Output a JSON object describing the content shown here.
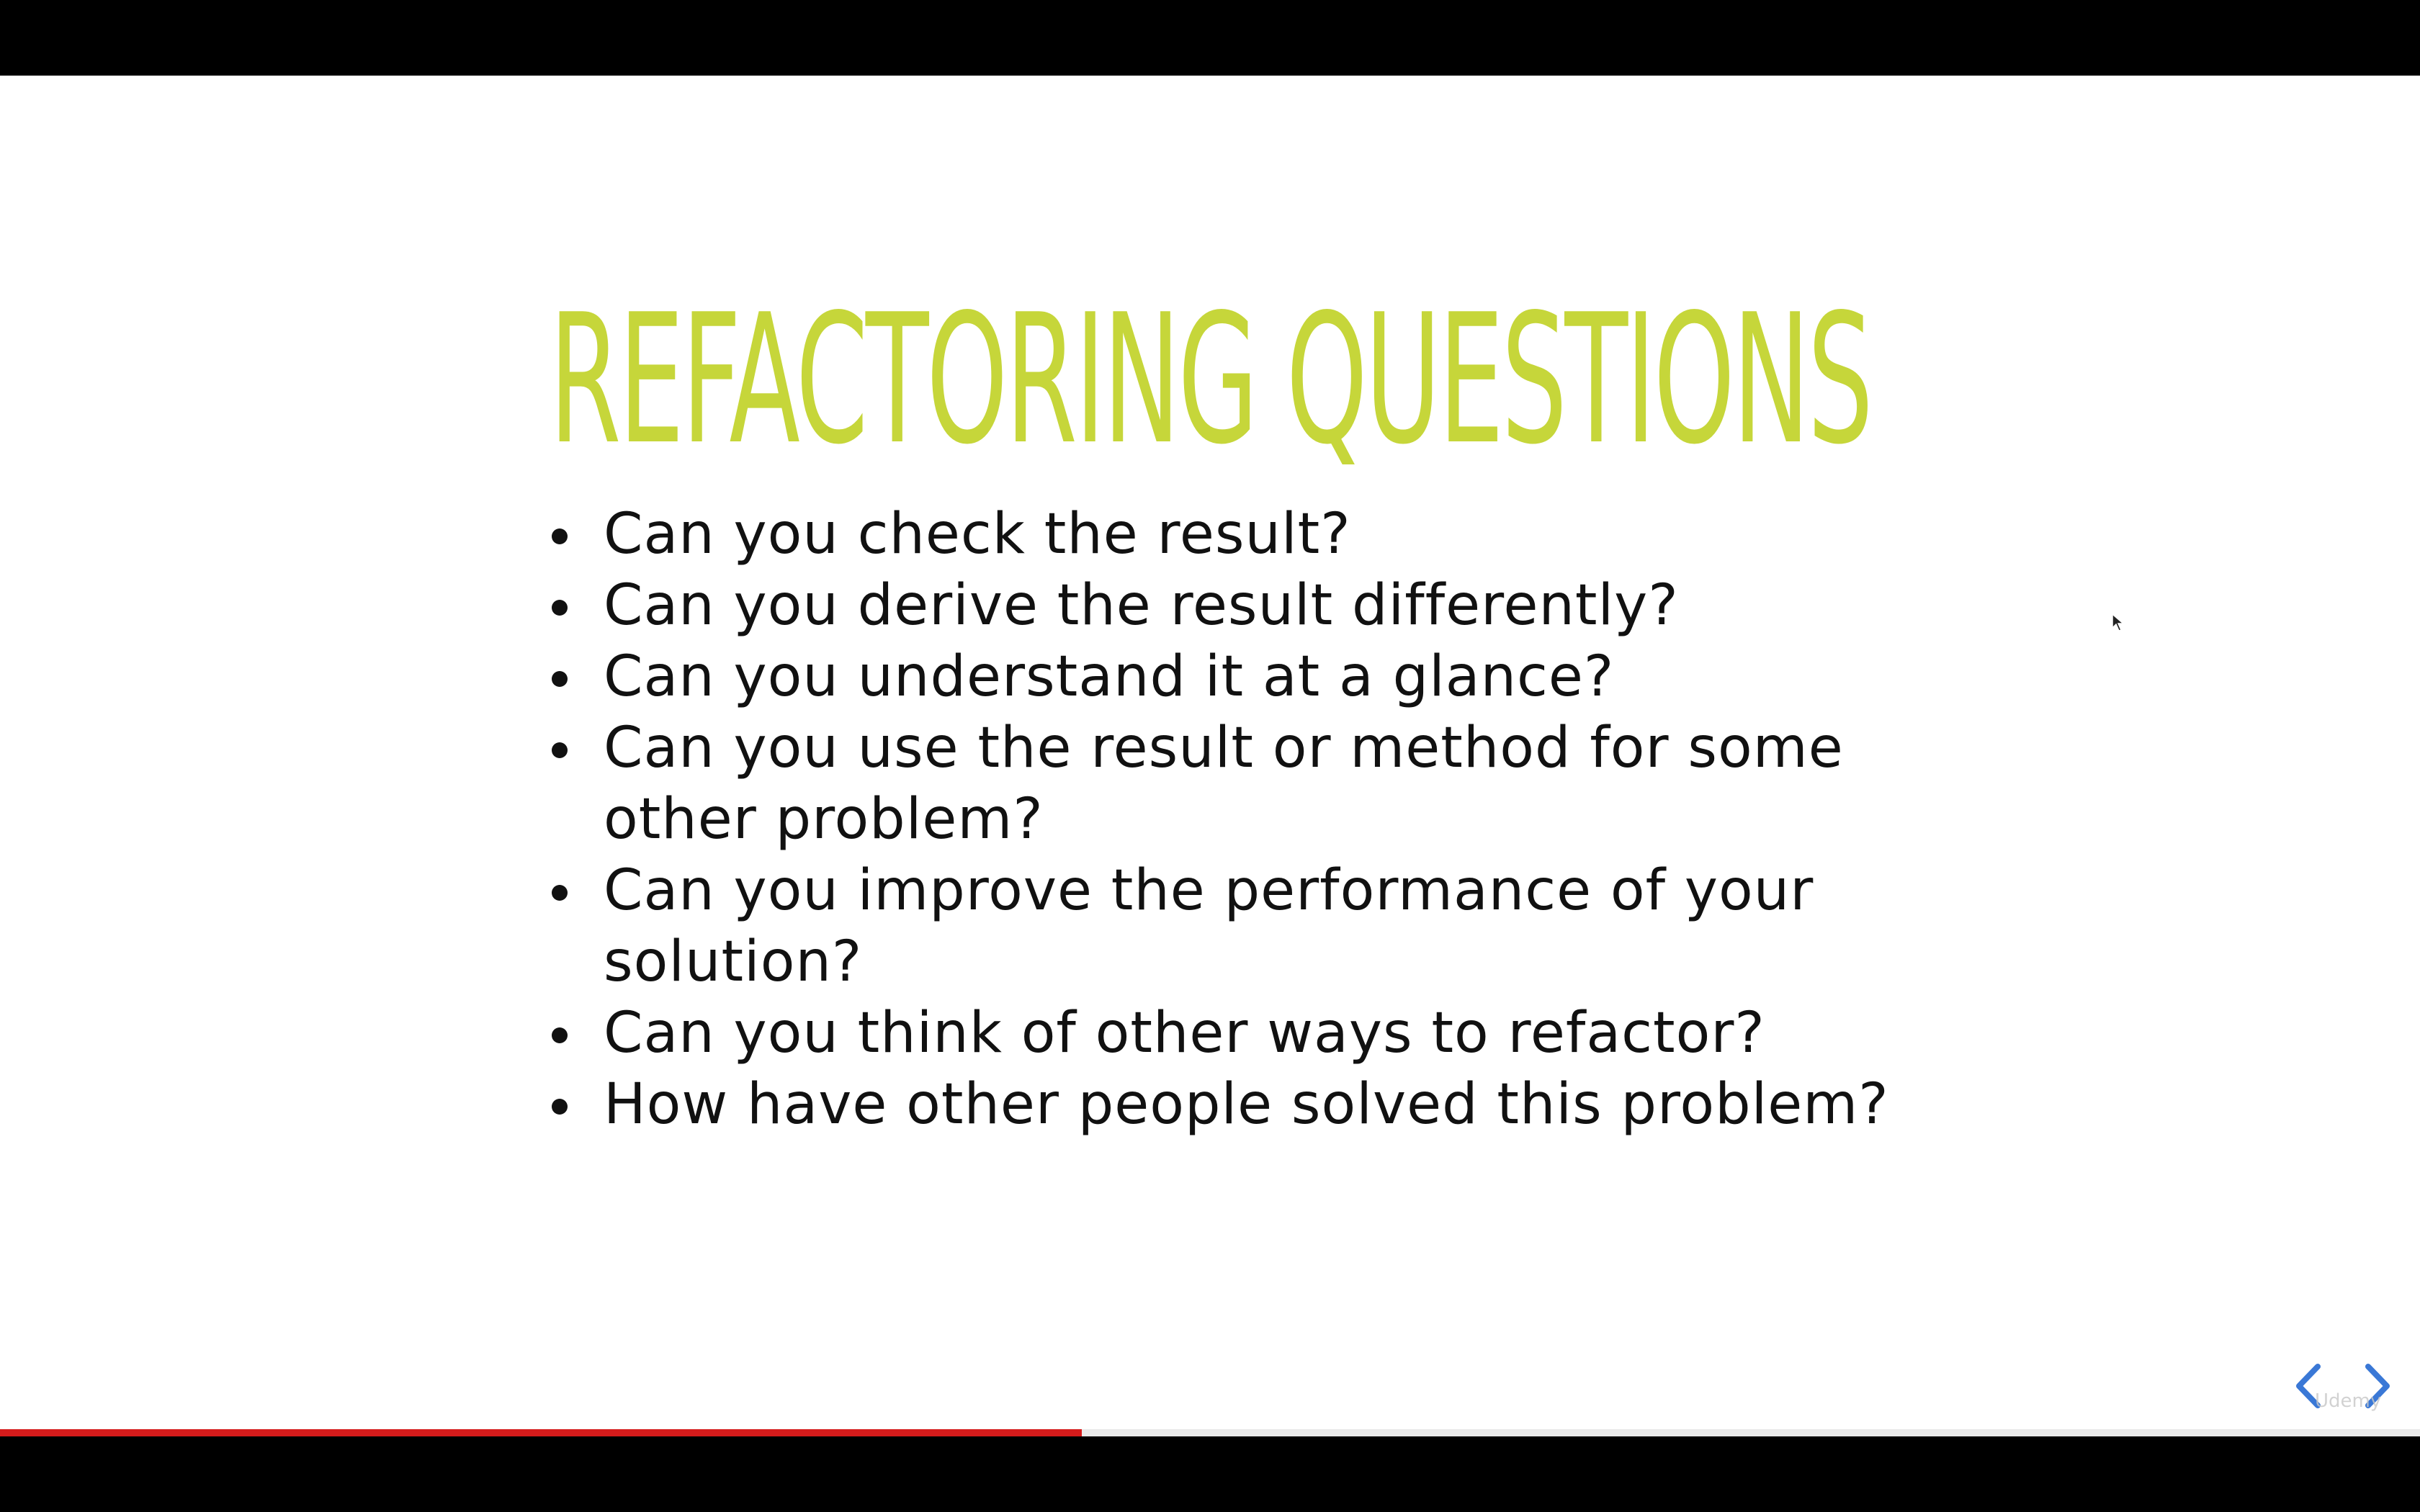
{
  "slide": {
    "title": "REFACTORING QUESTIONS",
    "bullets": [
      "Can you check the result?",
      "Can you derive the result differently?",
      "Can you understand it at a glance?",
      "Can you use the result or method for some other problem?",
      "Can you improve the performance of your solution?",
      "Can you think of other ways to refactor?",
      "How have other people solved this problem?"
    ]
  },
  "navigation": {
    "prev_icon": "chevron-left-icon",
    "next_icon": "chevron-right-icon"
  },
  "watermark": "Udemy",
  "progress": {
    "fraction": 0.447
  },
  "colors": {
    "title": "#c6d63a",
    "text": "#111111",
    "nav_arrow": "#3a78d6",
    "progress": "#d51b1b",
    "letterbox": "#000000"
  }
}
